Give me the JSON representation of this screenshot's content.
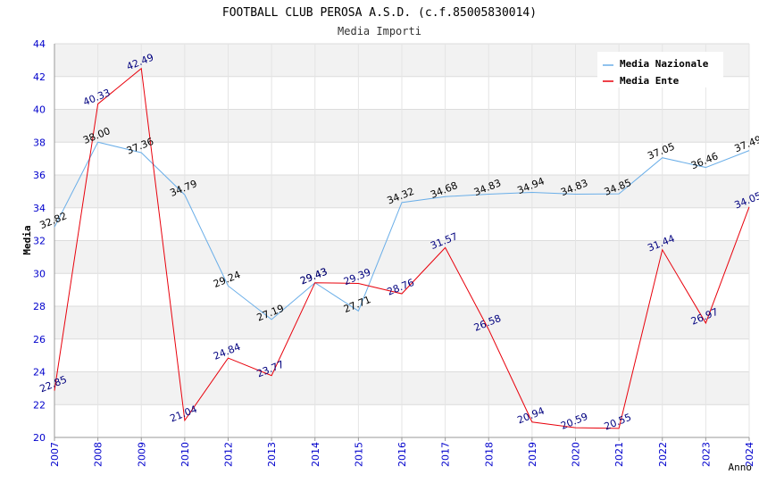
{
  "chart_data": {
    "type": "line",
    "title": "FOOTBALL CLUB PEROSA A.S.D. (c.f.85005830014)",
    "subtitle": "Media Importi",
    "xlabel": "Anno",
    "ylabel": "Media",
    "ylim": [
      20,
      44
    ],
    "yticks": [
      "20",
      "22",
      "24",
      "26",
      "28",
      "30",
      "32",
      "34",
      "36",
      "38",
      "40",
      "42",
      "44"
    ],
    "categories": [
      "2007",
      "2008",
      "2009",
      "2010",
      "2012",
      "2013",
      "2014",
      "2015",
      "2016",
      "2017",
      "2018",
      "2019",
      "2020",
      "2021",
      "2022",
      "2023",
      "2024"
    ],
    "grid": true,
    "legend_position": "top-right",
    "series": [
      {
        "name": "Media Nazionale",
        "color": "#6aaee8",
        "label_color": "#000000",
        "values": [
          32.82,
          38.0,
          37.36,
          34.79,
          29.24,
          27.19,
          29.43,
          27.71,
          34.32,
          34.68,
          34.83,
          34.94,
          34.83,
          34.85,
          37.05,
          36.46,
          37.49
        ],
        "labels": [
          "32.82",
          "38.00",
          "37.36",
          "34.79",
          "29.24",
          "27.19",
          "29.43",
          "27.71",
          "34.32",
          "34.68",
          "34.83",
          "34.94",
          "34.83",
          "34.85",
          "37.05",
          "36.46",
          "37.49"
        ]
      },
      {
        "name": "Media Ente",
        "color": "#e8000b",
        "label_color": "#00007f",
        "values": [
          22.85,
          40.33,
          42.49,
          21.04,
          24.84,
          23.77,
          29.43,
          29.39,
          28.76,
          31.57,
          26.58,
          20.94,
          20.59,
          20.55,
          31.44,
          26.97,
          34.05
        ],
        "labels": [
          "22.85",
          "40.33",
          "42.49",
          "21.04",
          "24.84",
          "23.77",
          "29.43",
          "29.39",
          "28.76",
          "31.57",
          "26.58",
          "20.94",
          "20.59",
          "20.55",
          "31.44",
          "26.97",
          "34.05"
        ]
      }
    ]
  }
}
